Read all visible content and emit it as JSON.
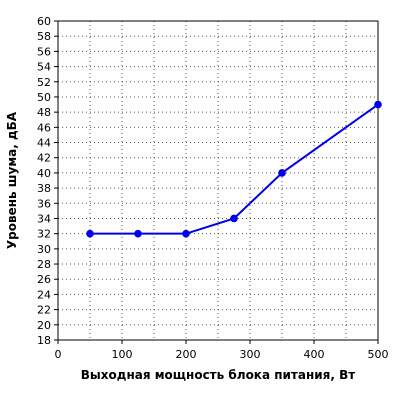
{
  "chart_data": {
    "type": "line",
    "title": "",
    "xlabel": "Выходная мощность блока питания, Вт",
    "ylabel": "Уровень шума, дБА",
    "xlim": [
      0,
      500
    ],
    "ylim": [
      18,
      60
    ],
    "x_ticks": [
      0,
      100,
      200,
      300,
      400,
      500
    ],
    "y_ticks": [
      18,
      20,
      22,
      24,
      26,
      28,
      30,
      32,
      34,
      36,
      38,
      40,
      42,
      44,
      46,
      48,
      50,
      52,
      54,
      56,
      58,
      60
    ],
    "grid": true,
    "series": [
      {
        "color": "#0000ee",
        "x": [
          50,
          125,
          200,
          275,
          350,
          500
        ],
        "y": [
          32,
          32,
          32,
          34,
          40,
          49
        ]
      }
    ]
  }
}
